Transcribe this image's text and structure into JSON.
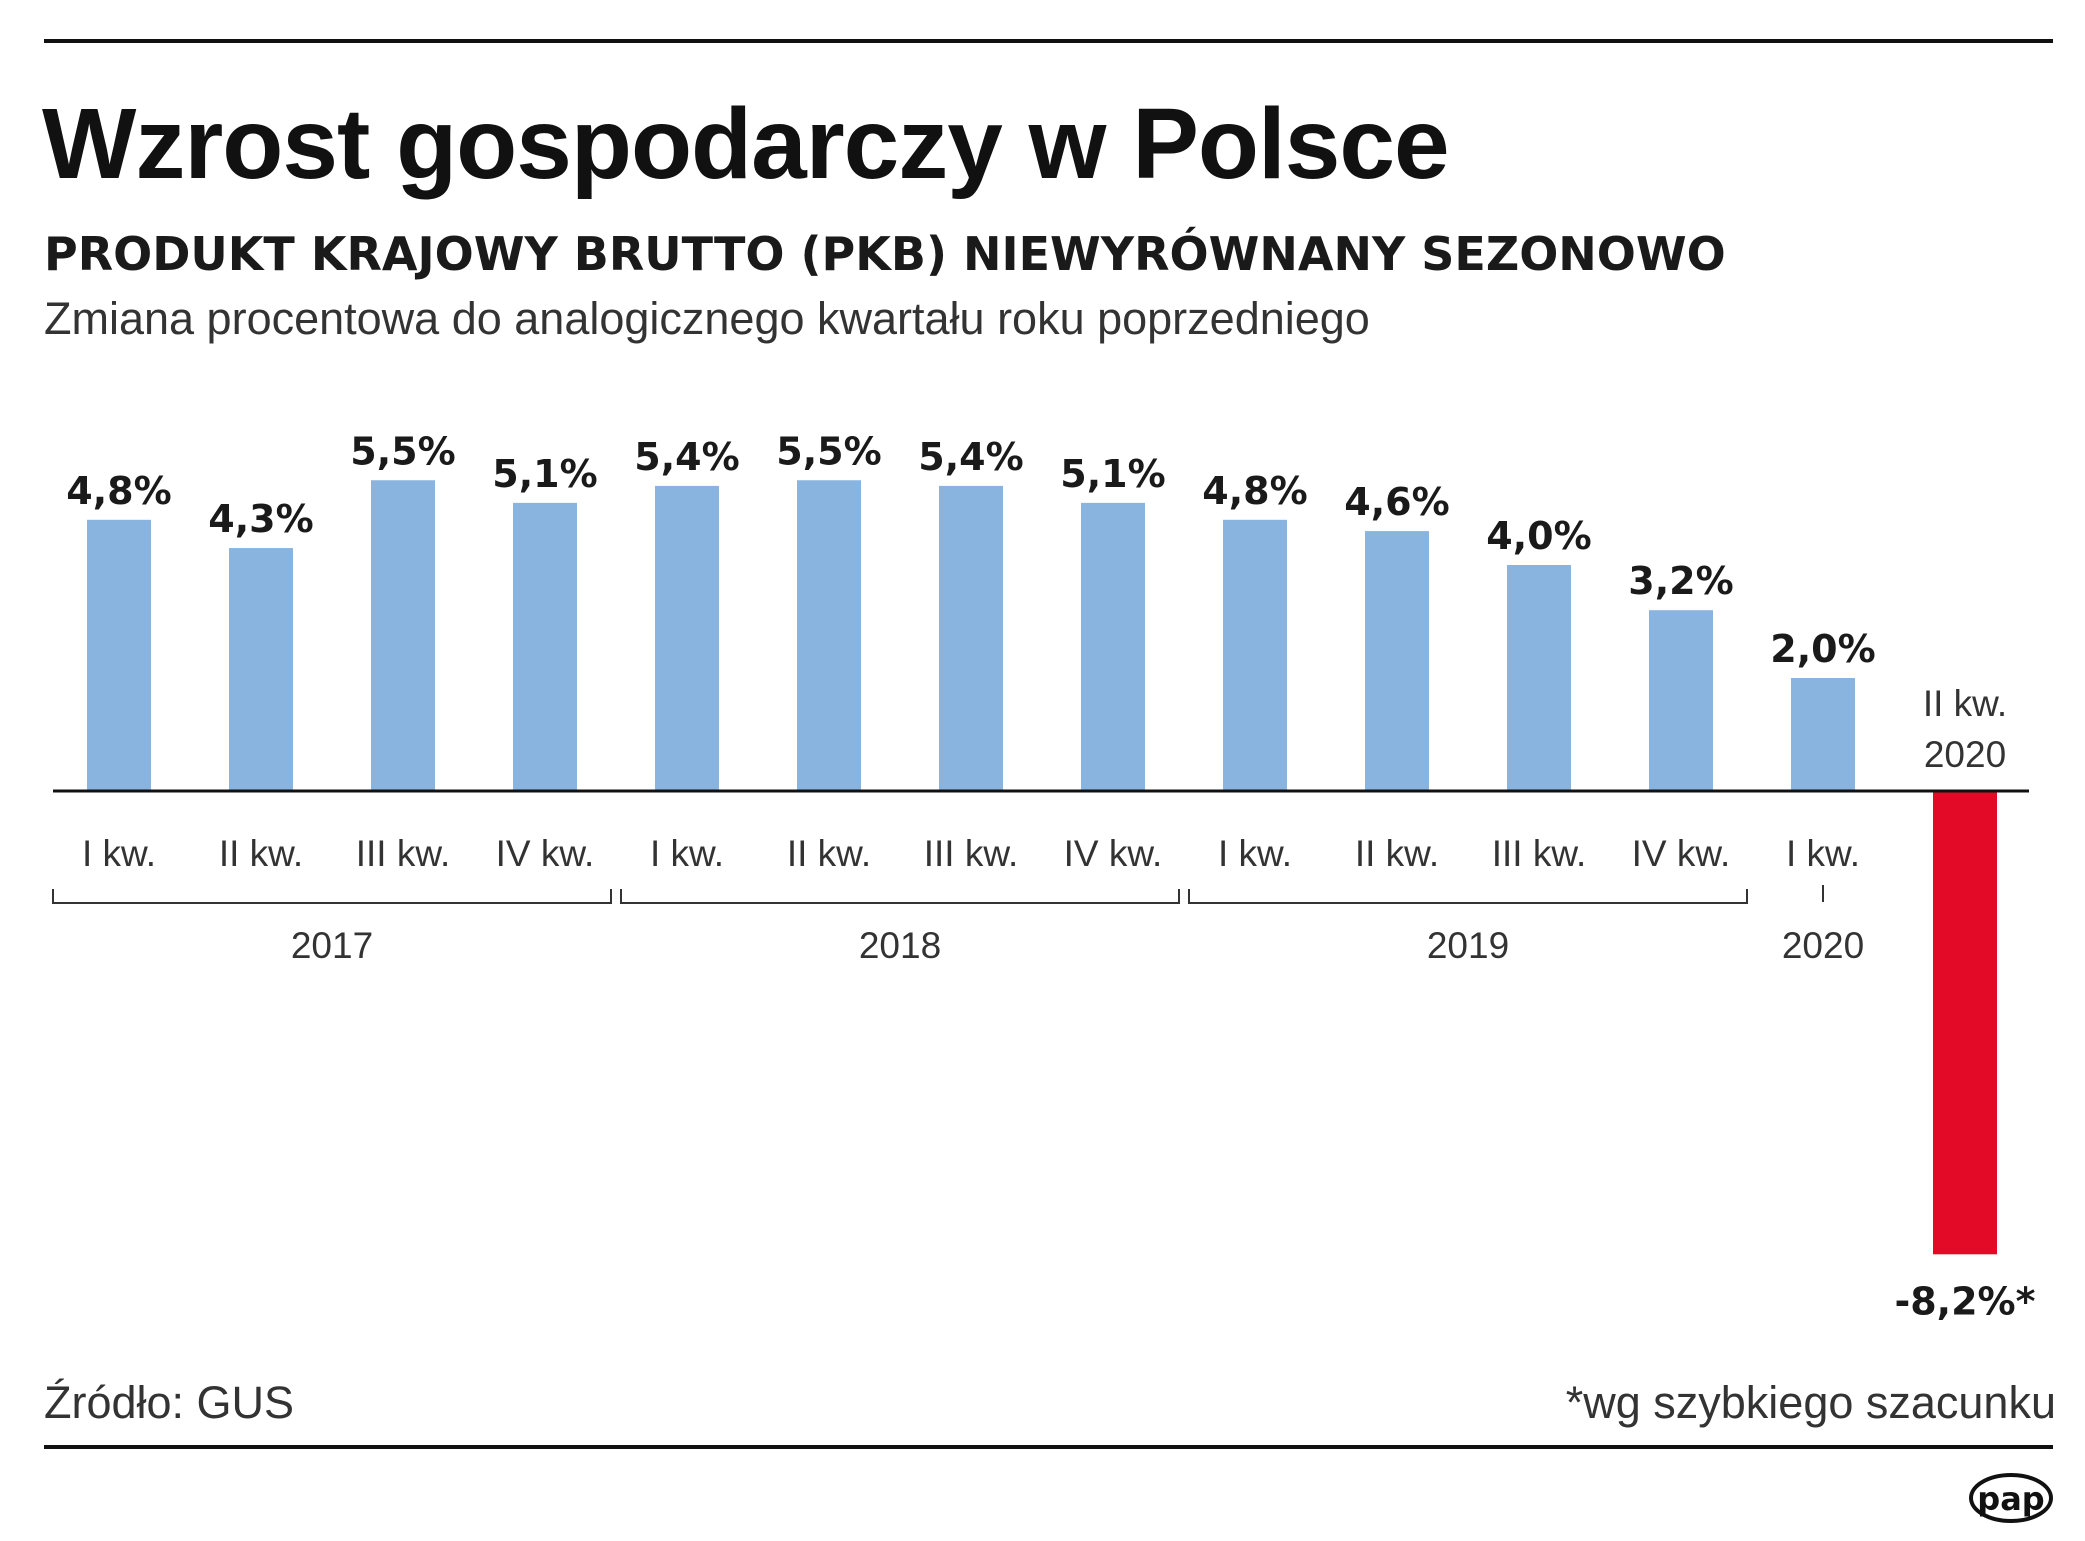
{
  "title": "Wzrost gospodarczy w Polsce",
  "subtitle": "PRODUKT KRAJOWY BRUTTO (PKB) NIEWYRÓWNANY SEZONOWO",
  "description": "Zmiana procentowa do analogicznego kwartału roku poprzedniego",
  "source": "Źródło: GUS",
  "footnote": "*wg szybkiego szacunku",
  "logo_text": "pap",
  "colors": {
    "positive": "#89b4e0",
    "negative": "#e30a27"
  },
  "chart_data": {
    "type": "bar",
    "title": "Wzrost gospodarczy w Polsce",
    "categories": [
      "I kw.",
      "II kw.",
      "III kw.",
      "IV kw.",
      "I kw.",
      "II kw.",
      "III kw.",
      "IV kw.",
      "I kw.",
      "II kw.",
      "III kw.",
      "IV kw.",
      "I kw.",
      "II kw. 2020"
    ],
    "years": [
      {
        "label": "2017",
        "from": 0,
        "to": 3
      },
      {
        "label": "2018",
        "from": 4,
        "to": 7
      },
      {
        "label": "2019",
        "from": 8,
        "to": 11
      },
      {
        "label": "2020",
        "from": 12,
        "to": 12
      }
    ],
    "values": [
      4.8,
      4.3,
      5.5,
      5.1,
      5.4,
      5.5,
      5.4,
      5.1,
      4.8,
      4.6,
      4.0,
      3.2,
      2.0,
      -8.2
    ],
    "value_labels": [
      "4,8%",
      "4,3%",
      "5,5%",
      "5,1%",
      "5,4%",
      "5,5%",
      "5,4%",
      "5,1%",
      "4,8%",
      "4,6%",
      "4,0%",
      "3,2%",
      "2,0%",
      "-8,2%*"
    ],
    "last_category_lines": [
      "II kw.",
      "2020"
    ],
    "xlabel": "",
    "ylabel": "",
    "grid": false,
    "legend": "none"
  }
}
